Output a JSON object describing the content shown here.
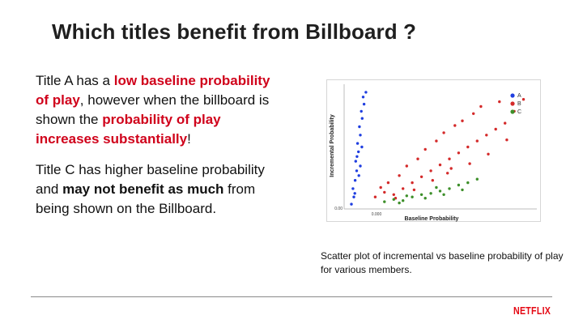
{
  "slide": {
    "title": "Which titles benefit from Billboard ?",
    "paragraphs": [
      [
        {
          "text": "Title A has a ",
          "style": "normal"
        },
        {
          "text": "low baseline probability of play",
          "style": "highlight"
        },
        {
          "text": ", however when the billboard is shown the ",
          "style": "normal"
        },
        {
          "text": "probability of play increases substantially",
          "style": "highlight"
        },
        {
          "text": "!",
          "style": "normal"
        }
      ],
      [
        {
          "text": "Title C has higher baseline probability and ",
          "style": "normal"
        },
        {
          "text": "may not benefit as much",
          "style": "bold"
        },
        {
          "text": " from being shown on the Billboard.",
          "style": "normal"
        }
      ]
    ],
    "caption": "Scatter plot of incremental vs baseline probability of play for various members.",
    "logo": "NETFLIX"
  },
  "colors": {
    "highlight": "#d0021b",
    "series_A": "#1f3ee0",
    "series_B": "#d42a2a",
    "series_C": "#3d8f2a",
    "logo": "#e50914"
  },
  "chart_data": {
    "type": "scatter",
    "xlabel": "Baseline Probability",
    "ylabel": "Incremental Probability",
    "x_ticks": [
      "0.000"
    ],
    "y_ticks": [
      "0.00"
    ],
    "xlim": [
      0,
      10
    ],
    "ylim": [
      0,
      10
    ],
    "legend_position": "top-right",
    "series": [
      {
        "name": "A",
        "color": "#1f3ee0",
        "points": [
          [
            0.22,
            0.2
          ],
          [
            0.35,
            0.8
          ],
          [
            0.3,
            1.5
          ],
          [
            0.42,
            2.2
          ],
          [
            0.5,
            3.0
          ],
          [
            0.45,
            3.8
          ],
          [
            0.6,
            4.6
          ],
          [
            0.55,
            5.3
          ],
          [
            0.7,
            6.0
          ],
          [
            0.65,
            6.7
          ],
          [
            0.8,
            7.4
          ],
          [
            0.75,
            8.0
          ],
          [
            0.9,
            8.6
          ],
          [
            0.85,
            9.2
          ],
          [
            1.0,
            9.6
          ],
          [
            0.4,
            1.1
          ],
          [
            0.62,
            2.6
          ],
          [
            0.7,
            3.4
          ],
          [
            0.52,
            4.2
          ],
          [
            0.78,
            5.0
          ]
        ]
      },
      {
        "name": "B",
        "color": "#d42a2a",
        "points": [
          [
            1.5,
            0.8
          ],
          [
            2.0,
            1.2
          ],
          [
            2.5,
            1.0
          ],
          [
            3.0,
            1.5
          ],
          [
            3.5,
            2.0
          ],
          [
            4.0,
            2.5
          ],
          [
            4.5,
            3.0
          ],
          [
            5.0,
            3.5
          ],
          [
            5.5,
            4.0
          ],
          [
            6.0,
            4.5
          ],
          [
            6.5,
            5.0
          ],
          [
            7.0,
            5.5
          ],
          [
            7.5,
            6.0
          ],
          [
            8.0,
            6.5
          ],
          [
            8.5,
            7.0
          ],
          [
            9.0,
            8.0
          ],
          [
            2.2,
            2.0
          ],
          [
            2.8,
            2.6
          ],
          [
            3.2,
            3.4
          ],
          [
            3.8,
            4.0
          ],
          [
            4.2,
            4.8
          ],
          [
            4.8,
            5.5
          ],
          [
            5.2,
            6.2
          ],
          [
            5.8,
            6.8
          ],
          [
            6.2,
            7.2
          ],
          [
            6.8,
            7.8
          ],
          [
            7.2,
            8.4
          ],
          [
            8.2,
            8.8
          ],
          [
            9.5,
            9.0
          ],
          [
            1.8,
            1.6
          ],
          [
            4.6,
            2.2
          ],
          [
            5.4,
            2.8
          ],
          [
            6.6,
            3.6
          ],
          [
            7.6,
            4.4
          ],
          [
            8.6,
            5.6
          ],
          [
            3.6,
            1.4
          ],
          [
            2.6,
            0.7
          ],
          [
            5.6,
            3.2
          ]
        ]
      },
      {
        "name": "C",
        "color": "#3d8f2a",
        "points": [
          [
            2.0,
            0.4
          ],
          [
            2.5,
            0.6
          ],
          [
            3.0,
            0.5
          ],
          [
            3.5,
            0.8
          ],
          [
            4.0,
            1.0
          ],
          [
            4.5,
            1.1
          ],
          [
            5.0,
            1.3
          ],
          [
            5.5,
            1.5
          ],
          [
            6.0,
            1.8
          ],
          [
            6.5,
            2.0
          ],
          [
            7.0,
            2.3
          ],
          [
            3.2,
            0.9
          ],
          [
            4.2,
            0.7
          ],
          [
            5.2,
            1.0
          ],
          [
            6.2,
            1.4
          ],
          [
            2.8,
            0.3
          ],
          [
            4.8,
            1.6
          ]
        ]
      }
    ]
  }
}
